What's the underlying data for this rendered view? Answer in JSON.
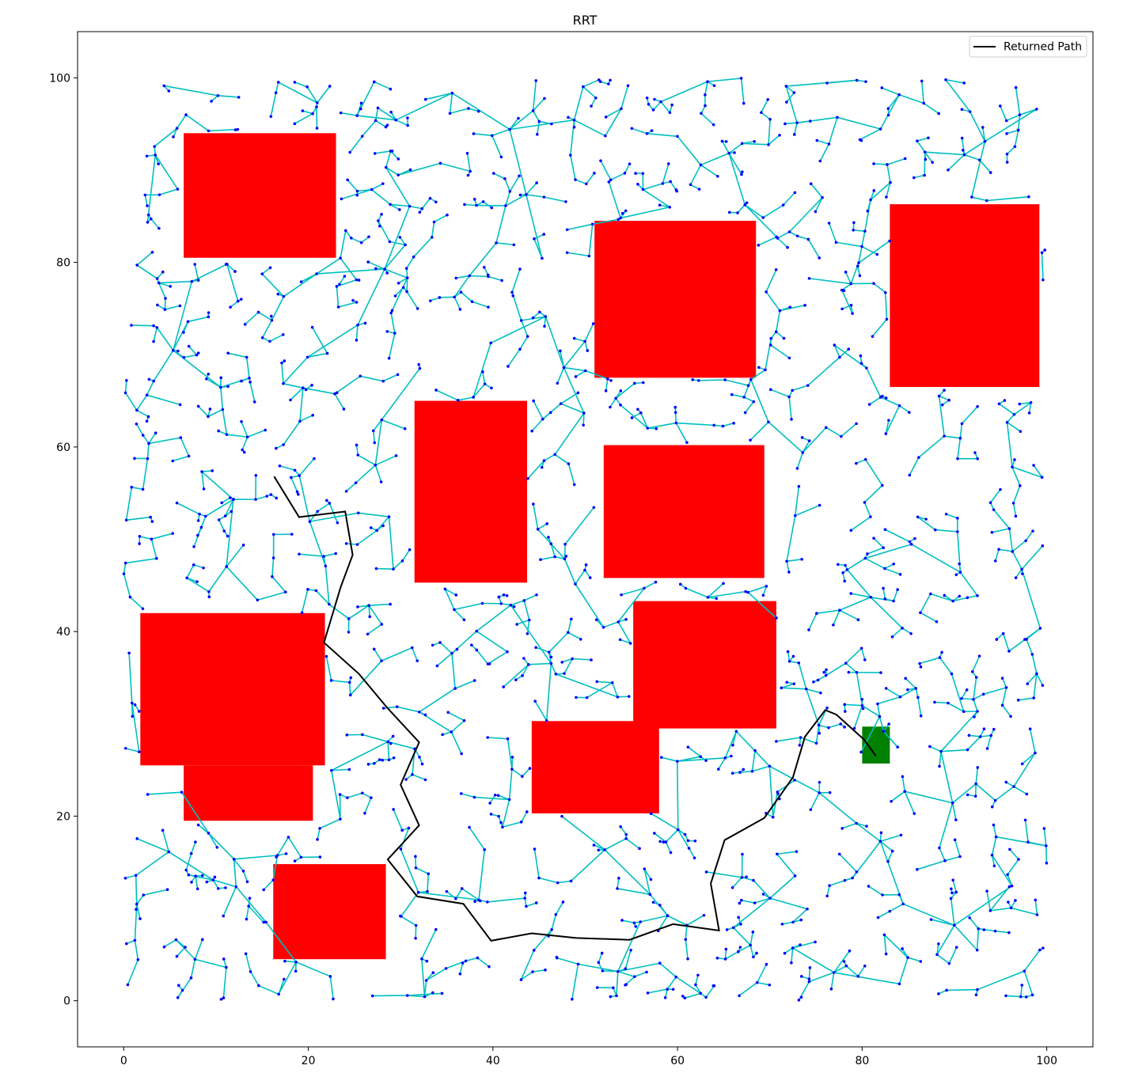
{
  "chart_data": {
    "type": "line",
    "title": "RRT",
    "xlabel": "",
    "ylabel": "",
    "xlim": [
      -5,
      105
    ],
    "ylim": [
      -5,
      105
    ],
    "xticks": [
      "0",
      "20",
      "40",
      "60",
      "80",
      "100"
    ],
    "yticks": [
      "0",
      "20",
      "40",
      "60",
      "80",
      "100"
    ],
    "grid": false,
    "legend": {
      "placement": "top-right",
      "entries": [
        "Returned Path"
      ]
    },
    "colors": {
      "obstacle": "#ff0000",
      "goal": "#008000",
      "tree_edge": "#00bfbf",
      "tree_node": "#0000ff",
      "path": "#000000"
    },
    "obstacles": [
      {
        "x": [
          6.5,
          23.0
        ],
        "y": [
          80.5,
          94.0
        ]
      },
      {
        "x": [
          51.0,
          68.5
        ],
        "y": [
          67.5,
          84.5
        ]
      },
      {
        "x": [
          83.0,
          99.2
        ],
        "y": [
          66.5,
          86.3
        ]
      },
      {
        "x": [
          31.5,
          43.7
        ],
        "y": [
          45.3,
          65.0
        ]
      },
      {
        "x": [
          52.0,
          69.4
        ],
        "y": [
          45.8,
          60.2
        ]
      },
      {
        "x": [
          1.8,
          21.8
        ],
        "y": [
          25.5,
          42.0
        ]
      },
      {
        "x": [
          6.5,
          20.5
        ],
        "y": [
          19.5,
          25.5
        ]
      },
      {
        "x": [
          55.2,
          70.7
        ],
        "y": [
          29.5,
          43.3
        ]
      },
      {
        "x": [
          44.2,
          58.0
        ],
        "y": [
          20.3,
          30.3
        ]
      },
      {
        "x": [
          16.2,
          28.4
        ],
        "y": [
          4.5,
          14.8
        ]
      }
    ],
    "goal_region": {
      "x": [
        80.0,
        83.0
      ],
      "y": [
        25.7,
        29.7
      ]
    },
    "tree": {
      "node_count": 1400,
      "x_range": [
        0,
        100
      ],
      "y_range": [
        0,
        100
      ]
    },
    "series": [
      {
        "name": "Returned Path",
        "x": [
          16.3,
          19.0,
          24.0,
          24.8,
          23.5,
          21.7,
          25.5,
          28.5,
          32.0,
          30.0,
          32.0,
          28.6,
          31.8,
          36.8,
          39.8,
          44.2,
          49.0,
          54.8,
          59.5,
          64.5,
          63.6,
          65.1,
          69.4,
          72.5,
          73.8,
          76.0,
          77.2,
          80.2,
          81.5
        ],
        "y": [
          56.8,
          52.4,
          53.0,
          48.3,
          44.8,
          38.8,
          35.4,
          31.8,
          28.0,
          23.4,
          19.0,
          15.3,
          11.3,
          10.5,
          6.5,
          7.3,
          6.8,
          6.6,
          8.3,
          7.6,
          12.7,
          17.4,
          19.8,
          24.2,
          28.6,
          31.5,
          31.0,
          28.3,
          26.5
        ]
      }
    ]
  }
}
